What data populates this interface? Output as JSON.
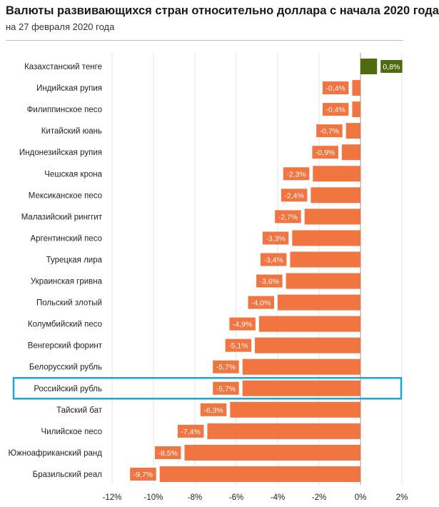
{
  "chart_data": {
    "type": "bar",
    "orientation": "horizontal",
    "title": "Валюты развивающихся стран относительно доллара с начала 2020 года",
    "subtitle": "на 27 февраля 2020 года",
    "categories": [
      "Казахстанский тенге",
      "Индийская рупия",
      "Филиппинское песо",
      "Китайский юань",
      "Индонезийская рупия",
      "Чешская крона",
      "Мексиканское песо",
      "Малазийский ринггит",
      "Аргентинский песо",
      "Турецкая лира",
      "Украинская гривна",
      "Польский злотый",
      "Колумбийский песо",
      "Венгерский форинт",
      "Белорусский рубль",
      "Российский рубль",
      "Тайский бат",
      "Чилийское песо",
      "Южноафриканский  ранд",
      "Бразильский реал"
    ],
    "values": [
      0.8,
      -0.4,
      -0.4,
      -0.7,
      -0.9,
      -2.3,
      -2.4,
      -2.7,
      -3.3,
      -3.4,
      -3.6,
      -4.0,
      -4.9,
      -5.1,
      -5.7,
      -5.7,
      -6.3,
      -7.4,
      -8.5,
      -9.7
    ],
    "value_labels": [
      "0,8%",
      "-0,4%",
      "-0,4%",
      "-0,7%",
      "-0,9%",
      "-2,3%",
      "-2,4%",
      "-2,7%",
      "-3,3%",
      "-3,4%",
      "-3,6%",
      "-4,0%",
      "-4,9%",
      "-5,1%",
      "-5,7%",
      "-5,7%",
      "-6,3%",
      "-7,4%",
      "-8,5%",
      "-9,7%"
    ],
    "xlim": [
      -12,
      2
    ],
    "xticks": [
      -12,
      -10,
      -8,
      -6,
      -4,
      -2,
      0,
      2
    ],
    "xtick_labels": [
      "-12%",
      "-10%",
      "-8%",
      "-6%",
      "-4%",
      "-2%",
      "0%",
      "2%"
    ],
    "highlighted_category": "Российский рубль",
    "grid": true,
    "colors": {
      "negative": "#f07541",
      "positive": "#4f6b0f",
      "highlight_border": "#1ba7d6",
      "grid": "#e4e4e4"
    }
  }
}
